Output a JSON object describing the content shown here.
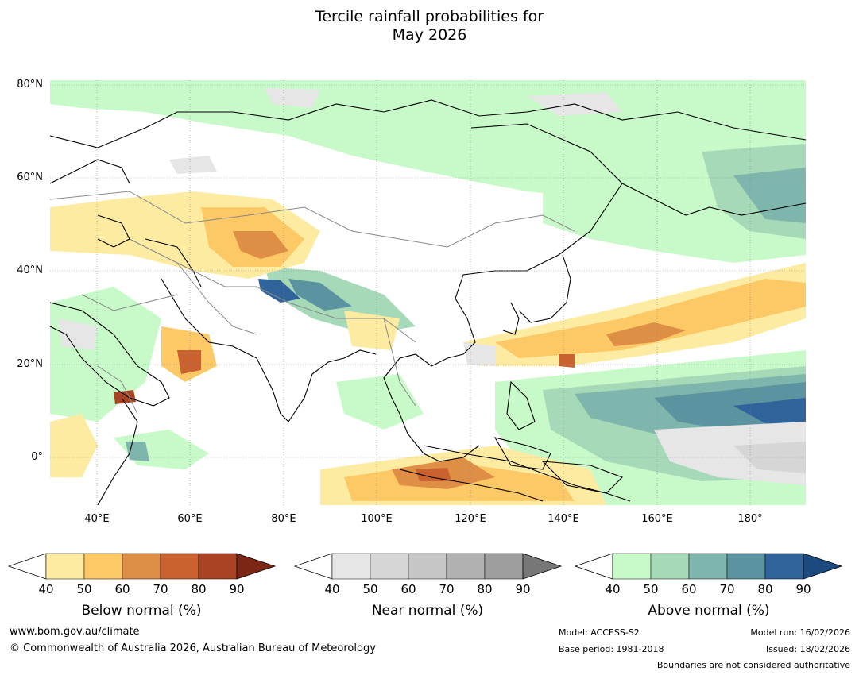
{
  "title_line1": "Tercile rainfall probabilities for",
  "title_line2": "May 2026",
  "map": {
    "lat_labels": [
      "80°N",
      "60°N",
      "40°N",
      "20°N",
      "0°"
    ],
    "lon_labels": [
      "40°E",
      "60°E",
      "80°E",
      "100°E",
      "120°E",
      "140°E",
      "160°E",
      "180°"
    ],
    "lat_range": [
      -10,
      81
    ],
    "lon_range": [
      30,
      192
    ]
  },
  "colorbars": [
    {
      "title": "Below normal (%)",
      "ticks": [
        "40",
        "50",
        "60",
        "70",
        "80",
        "90"
      ],
      "colors": [
        "#ffffff",
        "#feeba2",
        "#fdc866",
        "#df8e45",
        "#c9622f",
        "#a84423",
        "#7c2716"
      ]
    },
    {
      "title": "Near normal (%)",
      "ticks": [
        "40",
        "50",
        "60",
        "70",
        "80",
        "90"
      ],
      "colors": [
        "#ffffff",
        "#e6e6e6",
        "#d6d6d6",
        "#c6c6c6",
        "#b1b1b1",
        "#9e9e9e",
        "#777777"
      ]
    },
    {
      "title": "Above normal (%)",
      "ticks": [
        "40",
        "50",
        "60",
        "70",
        "80",
        "90"
      ],
      "colors": [
        "#ffffff",
        "#c8fac9",
        "#a6d9b8",
        "#7eb5ac",
        "#5b93a0",
        "#30639a",
        "#1a4a80"
      ]
    }
  ],
  "footer": {
    "website": "www.bom.gov.au/climate",
    "copyright": "© Commonwealth of Australia 2026, Australian Bureau of Meteorology",
    "model": "Model: ACCESS-S2",
    "base_period": "Base period: 1981-2018",
    "model_run": "Model run: 16/02/2026",
    "issued": "Issued: 18/02/2026",
    "disclaimer": "Boundaries are not considered authoritative"
  }
}
